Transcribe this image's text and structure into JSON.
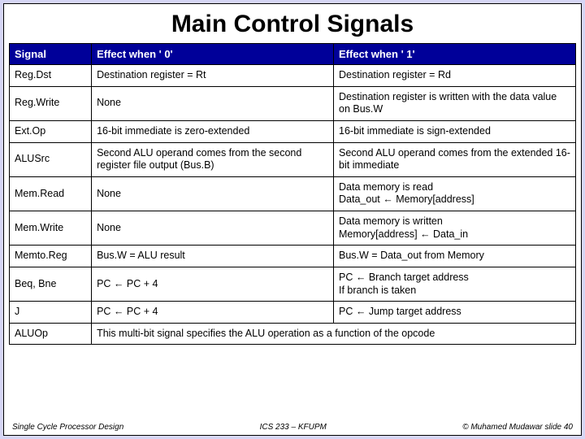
{
  "title": "Main Control Signals",
  "header_bg": "#000099",
  "header_fg": "#ffffff",
  "slide_bg": "#d6d6f5",
  "columns": [
    "Signal",
    "Effect when ' 0'",
    "Effect when ' 1'"
  ],
  "rows": [
    {
      "signal": "Reg.Dst",
      "e0": "Destination register = Rt",
      "e1": "Destination register = Rd"
    },
    {
      "signal": "Reg.Write",
      "e0": "None",
      "e1": "Destination register is written with the data value on Bus.W"
    },
    {
      "signal": "Ext.Op",
      "e0": "16-bit immediate is zero-extended",
      "e1": "16-bit immediate is sign-extended"
    },
    {
      "signal": "ALUSrc",
      "e0": "Second ALU operand comes from the second register file output (Bus.B)",
      "e1": "Second ALU operand comes from the extended 16-bit immediate"
    },
    {
      "signal": "Mem.Read",
      "e0": "None",
      "e1": "Data memory is read\nData_out ← Memory[address]"
    },
    {
      "signal": "Mem.Write",
      "e0": "None",
      "e1": "Data memory is written\nMemory[address] ← Data_in"
    },
    {
      "signal": "Memto.Reg",
      "e0": "Bus.W = ALU result",
      "e1": "Bus.W = Data_out from Memory"
    },
    {
      "signal": "Beq, Bne",
      "e0": "PC ← PC + 4",
      "e1": "PC ← Branch target address\nIf branch is taken"
    },
    {
      "signal": "J",
      "e0": "PC ← PC + 4",
      "e1": "PC ← Jump target address"
    }
  ],
  "last_row": {
    "signal": "ALUOp",
    "text": "This multi-bit signal specifies the ALU operation as a function of the opcode"
  },
  "footer": {
    "left": "Single Cycle Processor Design",
    "center": "ICS 233 – KFUPM",
    "right": "© Muhamed Mudawar   slide 40"
  }
}
